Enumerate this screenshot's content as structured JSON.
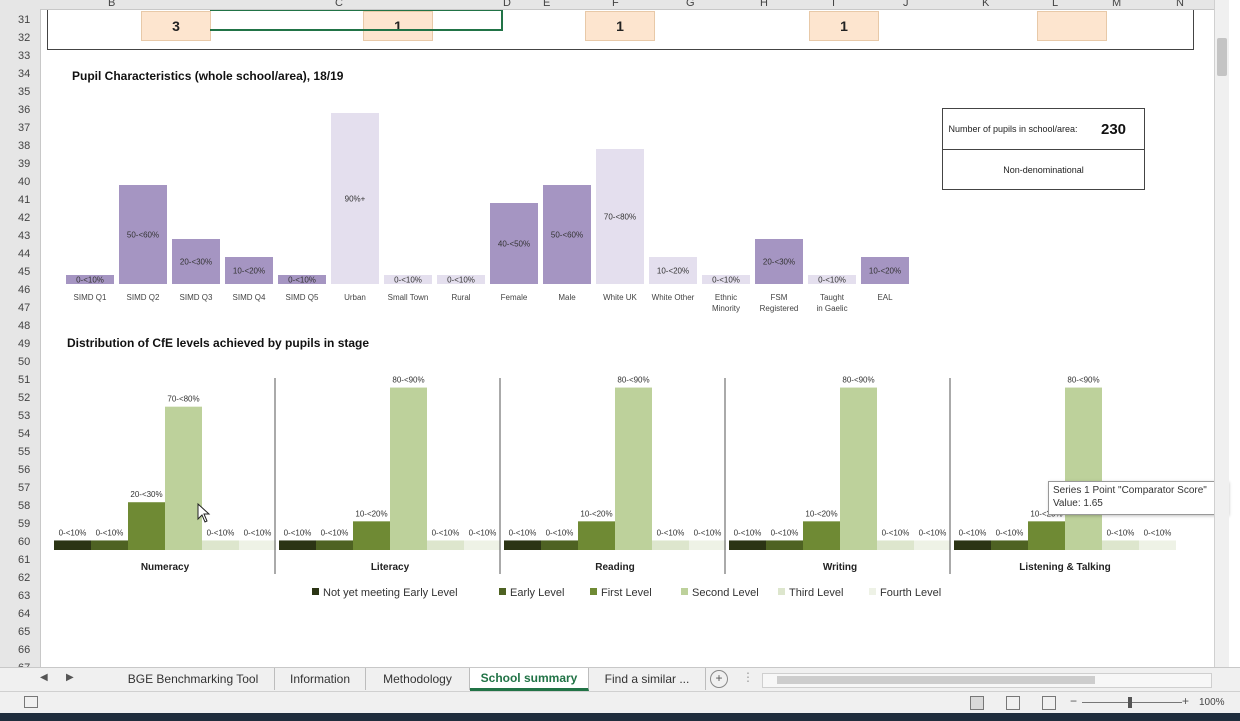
{
  "columns": [
    "B",
    "C",
    "D",
    "E",
    "F",
    "G",
    "H",
    "I",
    "J",
    "K",
    "L",
    "M",
    "N"
  ],
  "rows": [
    "31",
    "32",
    "33",
    "34",
    "35",
    "36",
    "37",
    "38",
    "39",
    "40",
    "41",
    "42",
    "43",
    "44",
    "45",
    "46",
    "47",
    "48",
    "49",
    "50",
    "51",
    "52",
    "53",
    "54",
    "55",
    "56",
    "57",
    "58",
    "59",
    "60",
    "61",
    "62",
    "63",
    "64",
    "65",
    "66",
    "67"
  ],
  "top_values": [
    "3",
    "1",
    "1",
    "1",
    ""
  ],
  "chart1": {
    "title": "Pupil Characteristics (whole school/area), 18/19",
    "chart_data": {
      "type": "bar",
      "categories": [
        "SIMD Q1",
        "SIMD Q2",
        "SIMD Q3",
        "SIMD Q4",
        "SIMD Q5",
        "Urban",
        "Small Town",
        "Rural",
        "Female",
        "Male",
        "White UK",
        "White Other",
        "Ethnic Minority",
        "FSM Registered",
        "Taught in Gaelic",
        "EAL"
      ],
      "values": [
        5,
        55,
        25,
        15,
        5,
        95,
        5,
        5,
        45,
        55,
        75,
        15,
        5,
        25,
        5,
        15
      ],
      "labels": [
        "0-<10%",
        "50-<60%",
        "20-<30%",
        "10-<20%",
        "0-<10%",
        "90%+",
        "0-<10%",
        "0-<10%",
        "40-<50%",
        "50-<60%",
        "70-<80%",
        "10-<20%",
        "0-<10%",
        "20-<30%",
        "0-<10%",
        "10-<20%"
      ],
      "colors": [
        "#a595c2",
        "#a595c2",
        "#a595c2",
        "#a595c2",
        "#a595c2",
        "#e4dfee",
        "#e4dfee",
        "#e4dfee",
        "#a595c2",
        "#a595c2",
        "#e4dfee",
        "#e4dfee",
        "#e4dfee",
        "#a595c2",
        "#e4dfee",
        "#a595c2"
      ],
      "ylim": [
        0,
        100
      ]
    }
  },
  "info": {
    "pupils_label": "Number of pupils in school/area:",
    "pupils_value": "230",
    "denomination": "Non-denominational"
  },
  "chart2": {
    "title": "Distribution of CfE levels achieved by pupils in stage",
    "chart_data": {
      "type": "bar",
      "groups": [
        "Numeracy",
        "Literacy",
        "Reading",
        "Writing",
        "Listening & Talking"
      ],
      "series": [
        {
          "name": "Not yet meeting Early Level",
          "color": "#2b3414",
          "values": [
            5,
            5,
            5,
            5,
            5
          ],
          "labels": [
            "0-<10%",
            "0-<10%",
            "0-<10%",
            "0-<10%",
            "0-<10%"
          ]
        },
        {
          "name": "Early Level",
          "color": "#4e6222",
          "values": [
            5,
            5,
            5,
            5,
            5
          ],
          "labels": [
            "0-<10%",
            "0-<10%",
            "0-<10%",
            "0-<10%",
            "0-<10%"
          ]
        },
        {
          "name": "First Level",
          "color": "#6f8a34",
          "values": [
            25,
            15,
            15,
            15,
            15
          ],
          "labels": [
            "20-<30%",
            "10-<20%",
            "10-<20%",
            "10-<20%",
            "10-<20%"
          ]
        },
        {
          "name": "Second Level",
          "color": "#bdd19b",
          "values": [
            75,
            85,
            85,
            85,
            85
          ],
          "labels": [
            "70-<80%",
            "80-<90%",
            "80-<90%",
            "80-<90%",
            "80-<90%"
          ]
        },
        {
          "name": "Third Level",
          "color": "#dde6cd",
          "values": [
            5,
            5,
            5,
            5,
            5
          ],
          "labels": [
            "0-<10%",
            "0-<10%",
            "0-<10%",
            "0-<10%",
            "0-<10%"
          ]
        },
        {
          "name": "Fourth Level",
          "color": "#eef2e6",
          "values": [
            5,
            5,
            5,
            5,
            5
          ],
          "labels": [
            "0-<10%",
            "0-<10%",
            "0-<10%",
            "0-<10%",
            "0-<10%"
          ]
        }
      ],
      "ylim": [
        0,
        100
      ],
      "legend": "bottom"
    }
  },
  "tooltip": {
    "line1": "Series 1 Point \"Comparator Score\"",
    "line2": "Value: 1.65"
  },
  "tabs": [
    "BGE Benchmarking Tool",
    "Information",
    "Methodology",
    "School summary",
    "Find a similar ..."
  ],
  "active_tab": "School summary",
  "status": {
    "zoom": "100%"
  }
}
